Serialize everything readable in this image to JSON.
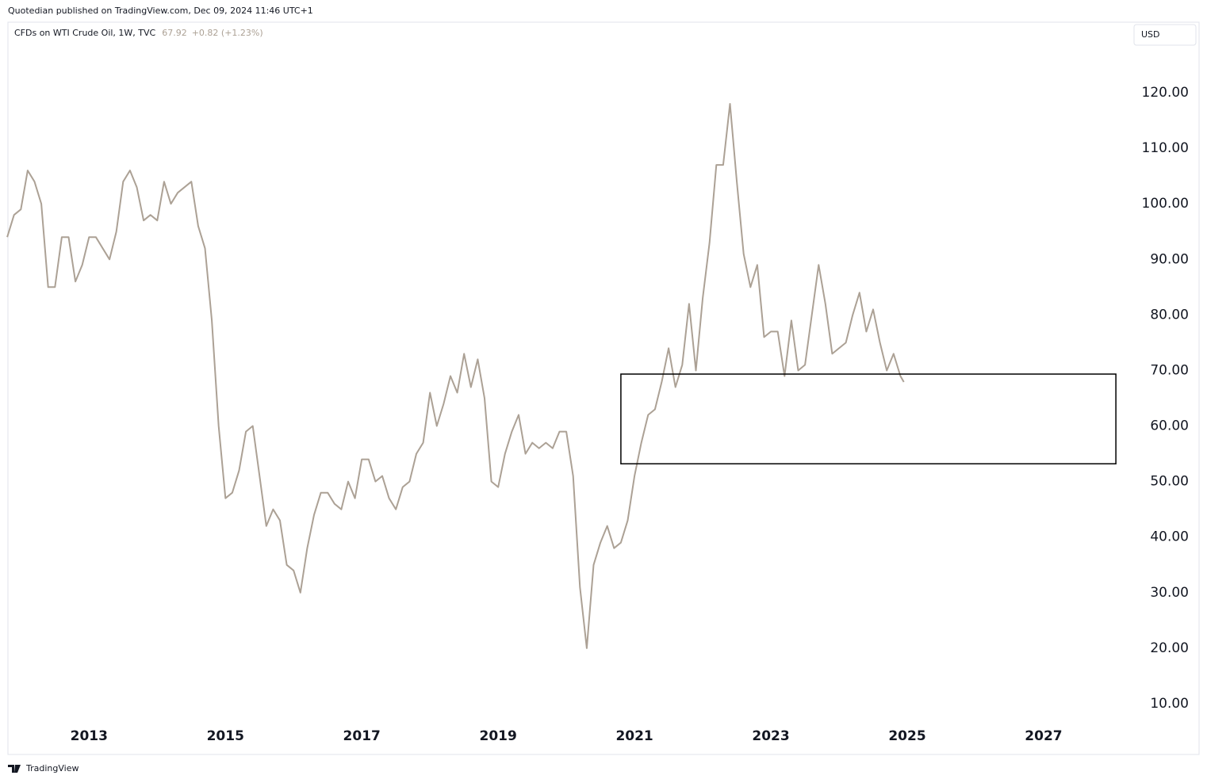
{
  "header": {
    "published": "Quotedian published on TradingView.com, Dec 09, 2024 11:46 UTC+1",
    "last": "67.92",
    "change": "+0.82 (+1.23%)",
    "currency": "USD",
    "footer": "TradingView"
  },
  "chart_data": {
    "type": "line",
    "x": [
      2011.8,
      2011.9,
      2012.0,
      2012.1,
      2012.2,
      2012.3,
      2012.4,
      2012.5,
      2012.6,
      2012.7,
      2012.8,
      2012.9,
      2013.0,
      2013.1,
      2013.2,
      2013.3,
      2013.4,
      2013.5,
      2013.6,
      2013.7,
      2013.8,
      2013.9,
      2014.0,
      2014.1,
      2014.2,
      2014.3,
      2014.4,
      2014.5,
      2014.6,
      2014.7,
      2014.8,
      2014.9,
      2015.0,
      2015.1,
      2015.2,
      2015.3,
      2015.4,
      2015.5,
      2015.6,
      2015.7,
      2015.8,
      2015.9,
      2016.0,
      2016.1,
      2016.2,
      2016.3,
      2016.4,
      2016.5,
      2016.6,
      2016.7,
      2016.8,
      2016.9,
      2017.0,
      2017.1,
      2017.2,
      2017.3,
      2017.4,
      2017.5,
      2017.6,
      2017.7,
      2017.8,
      2017.9,
      2018.0,
      2018.1,
      2018.2,
      2018.3,
      2018.4,
      2018.5,
      2018.6,
      2018.7,
      2018.8,
      2018.9,
      2019.0,
      2019.1,
      2019.2,
      2019.3,
      2019.4,
      2019.5,
      2019.6,
      2019.7,
      2019.8,
      2019.9,
      2020.0,
      2020.1,
      2020.2,
      2020.3,
      2020.4,
      2020.5,
      2020.6,
      2020.7,
      2020.8,
      2020.9,
      2021.0,
      2021.1,
      2021.2,
      2021.3,
      2021.4,
      2021.5,
      2021.6,
      2021.7,
      2021.8,
      2021.9,
      2022.0,
      2022.1,
      2022.2,
      2022.3,
      2022.4,
      2022.5,
      2022.6,
      2022.7,
      2022.8,
      2022.9,
      2023.0,
      2023.1,
      2023.2,
      2023.3,
      2023.4,
      2023.5,
      2023.6,
      2023.7,
      2023.8,
      2023.9,
      2024.0,
      2024.1,
      2024.2,
      2024.3,
      2024.4,
      2024.5,
      2024.6,
      2024.7,
      2024.8,
      2024.9,
      2024.95
    ],
    "series": [
      {
        "name": "CFDs on WTI Crude Oil, 1W, TVC",
        "color": "#aca195",
        "values": [
          94,
          98,
          99,
          106,
          104,
          100,
          85,
          85,
          94,
          94,
          86,
          89,
          94,
          94,
          92,
          90,
          95,
          104,
          106,
          103,
          97,
          98,
          97,
          104,
          100,
          102,
          103,
          104,
          96,
          92,
          79,
          60,
          47,
          48,
          52,
          59,
          60,
          51,
          42,
          45,
          43,
          35,
          34,
          30,
          38,
          44,
          48,
          48,
          46,
          45,
          50,
          47,
          54,
          54,
          50,
          51,
          47,
          45,
          49,
          50,
          55,
          57,
          66,
          60,
          64,
          69,
          66,
          73,
          67,
          72,
          65,
          50,
          49,
          55,
          59,
          62,
          55,
          57,
          56,
          57,
          56,
          59,
          59,
          51,
          31,
          20,
          35,
          39,
          42,
          38,
          39,
          43,
          51,
          57,
          62,
          63,
          68,
          74,
          67,
          71,
          82,
          70,
          83,
          93,
          107,
          107,
          118,
          104,
          91,
          85,
          89,
          76,
          77,
          77,
          69,
          79,
          70,
          71,
          80,
          89,
          82,
          73,
          74,
          75,
          80,
          84,
          77,
          81,
          75,
          70,
          73,
          69,
          67.92
        ]
      }
    ],
    "xlim": [
      2011.81,
      2028.21
    ],
    "xticks": [
      2013,
      2015,
      2017,
      2019,
      2021,
      2023,
      2025,
      2027
    ],
    "ylim": [
      6.86,
      132.7
    ],
    "yticks": [
      {
        "value": 10,
        "label": "10.00"
      },
      {
        "value": 20,
        "label": "20.00"
      },
      {
        "value": 30,
        "label": "30.00"
      },
      {
        "value": 40,
        "label": "40.00"
      },
      {
        "value": 50,
        "label": "50.00"
      },
      {
        "value": 60,
        "label": "60.00"
      },
      {
        "value": 70,
        "label": "70.00"
      },
      {
        "value": 80,
        "label": "80.00"
      },
      {
        "value": 90,
        "label": "90.00"
      },
      {
        "value": 100,
        "label": "100.00"
      },
      {
        "value": 110,
        "label": "110.00"
      },
      {
        "value": 120,
        "label": "120.00"
      }
    ],
    "grid": false,
    "zone": {
      "x": [
        2020.8,
        2028.06
      ],
      "y": [
        53.2,
        69.35
      ]
    }
  }
}
